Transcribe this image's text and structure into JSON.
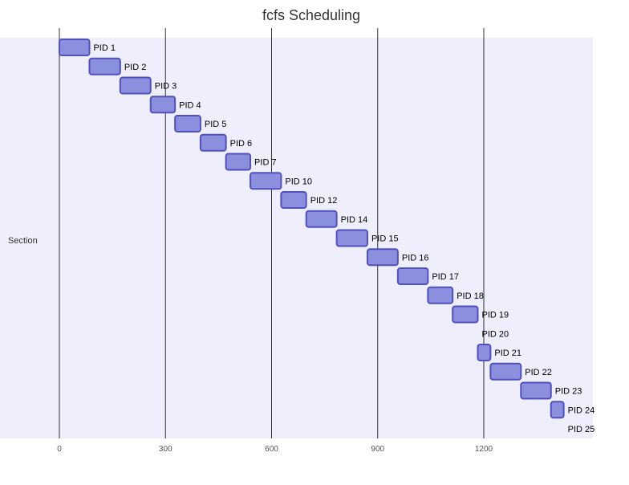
{
  "chart_data": {
    "type": "gantt",
    "title": "fcfs Scheduling",
    "section": "Section",
    "x_ticks": [
      0,
      300,
      600,
      900,
      1200
    ],
    "x_range": [
      0,
      1510
    ],
    "tasks": [
      {
        "label": "PID 1",
        "start": 0,
        "end": 85
      },
      {
        "label": "PID 2",
        "start": 85,
        "end": 172
      },
      {
        "label": "PID 3",
        "start": 172,
        "end": 258
      },
      {
        "label": "PID 4",
        "start": 258,
        "end": 327
      },
      {
        "label": "PID 5",
        "start": 327,
        "end": 399
      },
      {
        "label": "PID 6",
        "start": 399,
        "end": 471
      },
      {
        "label": "PID 7",
        "start": 471,
        "end": 540
      },
      {
        "label": "PID 10",
        "start": 540,
        "end": 627
      },
      {
        "label": "PID 12",
        "start": 627,
        "end": 698
      },
      {
        "label": "PID 14",
        "start": 698,
        "end": 784
      },
      {
        "label": "PID 15",
        "start": 784,
        "end": 871
      },
      {
        "label": "PID 16",
        "start": 871,
        "end": 957
      },
      {
        "label": "PID 17",
        "start": 957,
        "end": 1042
      },
      {
        "label": "PID 18",
        "start": 1042,
        "end": 1112
      },
      {
        "label": "PID 19",
        "start": 1112,
        "end": 1183
      },
      {
        "label": "PID 20",
        "start": 1183,
        "end": 1183
      },
      {
        "label": "PID 21",
        "start": 1183,
        "end": 1219
      },
      {
        "label": "PID 22",
        "start": 1219,
        "end": 1305
      },
      {
        "label": "PID 23",
        "start": 1305,
        "end": 1390
      },
      {
        "label": "PID 24",
        "start": 1390,
        "end": 1426
      },
      {
        "label": "PID 25",
        "start": 1426,
        "end": 1426
      }
    ],
    "colors": {
      "bar_fill": "#8a90dd",
      "bar_stroke": "#534fbc",
      "section_band": "#eeeefc",
      "grid_line": "#000000",
      "outside_label": "#000000",
      "inside_label": "#ffffff",
      "tick_label": "#555555"
    }
  }
}
